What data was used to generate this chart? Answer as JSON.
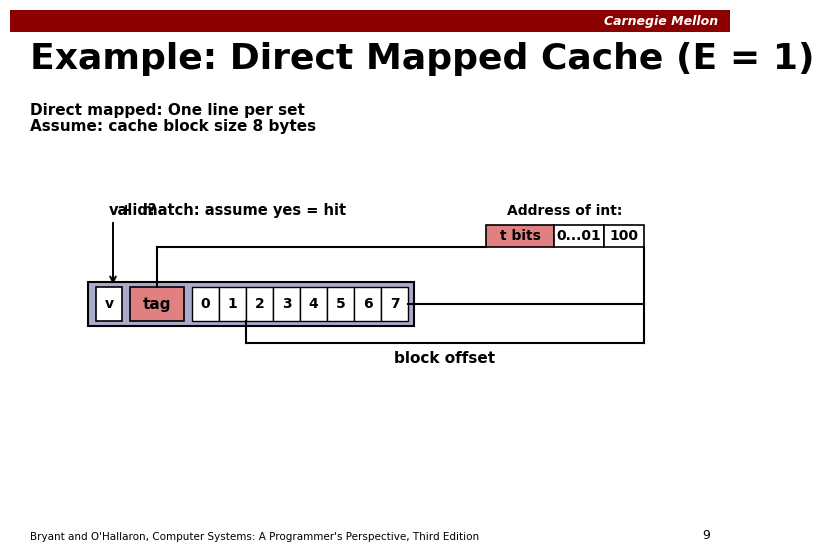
{
  "title": "Example: Direct Mapped Cache (E = 1)",
  "subtitle_line1": "Direct mapped: One line per set",
  "subtitle_line2": "Assume: cache block size 8 bytes",
  "header_text": "Carnegie Mellon",
  "header_bg": "#8b0000",
  "footer_text": "Bryant and O'Hallaron, Computer Systems: A Programmer's Perspective, Third Edition",
  "footer_page": "9",
  "valid_label": "valid?",
  "match_label": "+  match: assume yes = hit",
  "v_cell_color": "#ffffff",
  "tag_cell_color": "#e08080",
  "data_cell_color": "#ffffff",
  "cache_row_bg": "#aaaacc",
  "block_labels": [
    "0",
    "1",
    "2",
    "3",
    "4",
    "5",
    "6",
    "7"
  ],
  "address_title": "Address of int:",
  "addr_t_bits": "t bits",
  "addr_t_bits_color": "#e08080",
  "addr_index": "0...01",
  "addr_offset": "100",
  "block_offset_label": "block offset",
  "bg_color": "#ffffff",
  "text_color": "#000000",
  "title_fontsize": 26,
  "subtitle_fontsize": 11,
  "body_fontsize": 10.5,
  "cell_fontsize": 10
}
